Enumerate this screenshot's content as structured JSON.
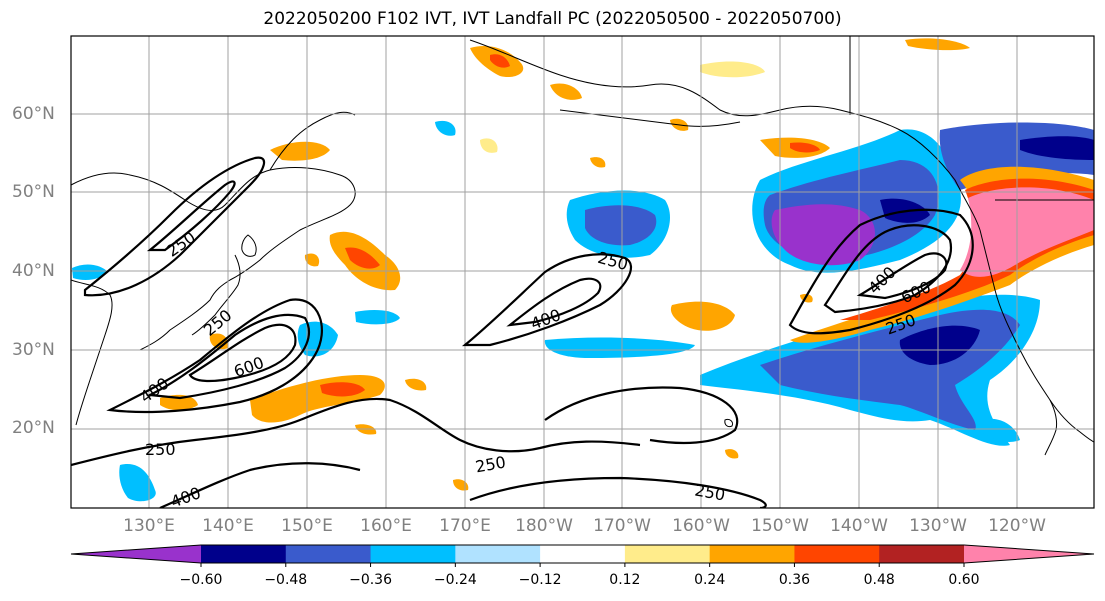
{
  "title": "2022050200 F102 IVT, IVT Landfall PC (2022050500 - 2022050700)",
  "lat_labels": [
    "60°N",
    "50°N",
    "40°N",
    "30°N",
    "20°N"
  ],
  "lon_labels": [
    "130°E",
    "140°E",
    "150°E",
    "160°E",
    "170°E",
    "180°W",
    "170°W",
    "160°W",
    "150°W",
    "140°W",
    "130°W",
    "120°W"
  ],
  "contour_labels": [
    "250",
    "250",
    "600",
    "400",
    "250",
    "400",
    "250",
    "400",
    "600",
    "400",
    "250",
    "250",
    "250",
    "400",
    "400"
  ],
  "colorbar": {
    "tick_labels": [
      "−0.60",
      "−0.48",
      "−0.36",
      "−0.24",
      "−0.12",
      "0.12",
      "0.24",
      "0.36",
      "0.48",
      "0.60"
    ],
    "colors": [
      "#9932cc",
      "#00008b",
      "#3a5bcc",
      "#00bfff",
      "#b0e2ff",
      "#ffffff",
      "#ffec8b",
      "#ffa500",
      "#ff4500",
      "#b22222",
      "#ff82ab"
    ]
  },
  "chart_data": {
    "type": "heatmap",
    "title": "2022050200 F102 IVT, IVT Landfall PC (2022050500 - 2022050700)",
    "field": "IVT Landfall PC (shaded), IVT (contours)",
    "lon_range": [
      "120°E",
      "125°W"
    ],
    "lat_range": [
      "10°N",
      "70°N"
    ],
    "shading_levels": [
      -0.6,
      -0.48,
      -0.36,
      -0.24,
      -0.12,
      0.12,
      0.24,
      0.36,
      0.48,
      0.6
    ],
    "contour_levels": [
      250,
      400,
      600
    ],
    "grid": true
  }
}
